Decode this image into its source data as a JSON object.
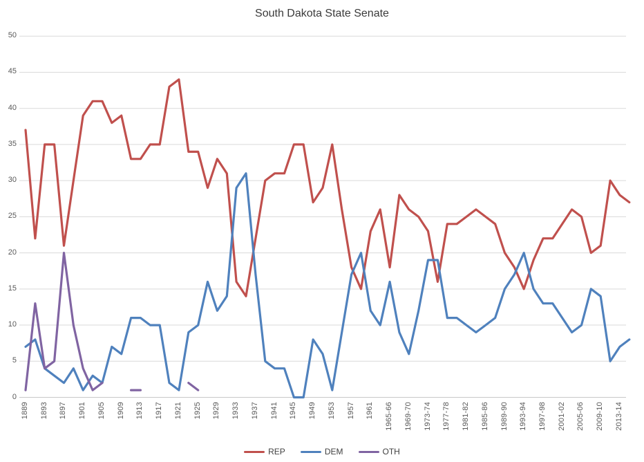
{
  "chart_data": {
    "type": "line",
    "title": "South Dakota State Senate",
    "xlabel": "",
    "ylabel": "",
    "ylim": [
      0,
      50
    ],
    "y_tick_step": 5,
    "y_ticks": [
      0,
      5,
      10,
      15,
      20,
      25,
      30,
      35,
      40,
      45,
      50
    ],
    "grid": "horizontal-only",
    "legend_position": "bottom-center",
    "categories": [
      "1889",
      "1891",
      "1893",
      "1895",
      "1897",
      "1899",
      "1901",
      "1903",
      "1905",
      "1907",
      "1909",
      "1911",
      "1913",
      "1915",
      "1917",
      "1919",
      "1921",
      "1923",
      "1925",
      "1927",
      "1929",
      "1931",
      "1933",
      "1935",
      "1937",
      "1939",
      "1941",
      "1943",
      "1945",
      "1947",
      "1949",
      "1951",
      "1953",
      "1955",
      "1957",
      "1959",
      "1961",
      "1963-64",
      "1965-66",
      "1967-68",
      "1969-70",
      "1971-72",
      "1973-74",
      "1975-76",
      "1977-78",
      "1979-80",
      "1981-82",
      "1983-84",
      "1985-86",
      "1987-88",
      "1989-90",
      "1991-92",
      "1993-94",
      "1995-96",
      "1997-98",
      "1999-2000",
      "2001-02",
      "2003-04",
      "2005-06",
      "2007-08",
      "2009-10",
      "2011-12",
      "2013-14",
      "2015-16"
    ],
    "x_axis_labels_shown_every": 2,
    "x_axis_labels": [
      "1889",
      "1893",
      "1897",
      "1901",
      "1905",
      "1909",
      "1913",
      "1917",
      "1921",
      "1925",
      "1929",
      "1933",
      "1937",
      "1941",
      "1945",
      "1949",
      "1953",
      "1957",
      "1961",
      "1965-66",
      "1969-70",
      "1973-74",
      "1977-78",
      "1981-82",
      "1985-86",
      "1989-90",
      "1993-94",
      "1997-98",
      "2001-02",
      "2005-06",
      "2009-10",
      "2013-14"
    ],
    "series": [
      {
        "name": "REP",
        "color": "#C0504D",
        "values": [
          37,
          22,
          35,
          35,
          21,
          30,
          39,
          41,
          41,
          38,
          39,
          33,
          33,
          35,
          35,
          43,
          44,
          34,
          34,
          29,
          33,
          31,
          16,
          14,
          22,
          30,
          31,
          31,
          35,
          35,
          27,
          29,
          35,
          26,
          18,
          15,
          23,
          26,
          18,
          28,
          26,
          25,
          23,
          16,
          24,
          24,
          25,
          26,
          25,
          24,
          20,
          18,
          15,
          19,
          22,
          22,
          24,
          26,
          25,
          20,
          21,
          30,
          28,
          27
        ]
      },
      {
        "name": "DEM",
        "color": "#4F81BD",
        "values": [
          7,
          8,
          4,
          3,
          2,
          4,
          1,
          3,
          2,
          7,
          6,
          11,
          11,
          10,
          10,
          2,
          1,
          9,
          10,
          16,
          12,
          14,
          29,
          31,
          17,
          5,
          4,
          4,
          0,
          0,
          8,
          6,
          1,
          9,
          17,
          20,
          12,
          10,
          16,
          9,
          6,
          12,
          19,
          19,
          11,
          11,
          10,
          9,
          10,
          11,
          15,
          17,
          20,
          15,
          13,
          13,
          11,
          9,
          10,
          15,
          14,
          5,
          7,
          8
        ]
      },
      {
        "name": "OTH",
        "color": "#8064A2",
        "values": [
          1,
          13,
          4,
          5,
          20,
          10,
          4,
          1,
          2,
          null,
          null,
          1,
          1,
          null,
          null,
          null,
          null,
          2,
          1,
          null,
          null,
          null,
          null,
          null,
          null,
          null,
          null,
          null,
          null,
          null,
          null,
          null,
          null,
          null,
          null,
          null,
          null,
          null,
          null,
          null,
          null,
          null,
          null,
          null,
          null,
          null,
          null,
          null,
          null,
          null,
          null,
          null,
          null,
          null,
          null,
          null,
          null,
          null,
          null,
          null,
          null,
          null,
          null,
          null
        ]
      }
    ],
    "colors": {
      "grid_line": "#D9D9D9",
      "axis_line": "#C8C8C8",
      "tick_label": "#595959",
      "title": "#3A3A3A",
      "background": "#FFFFFF"
    }
  }
}
